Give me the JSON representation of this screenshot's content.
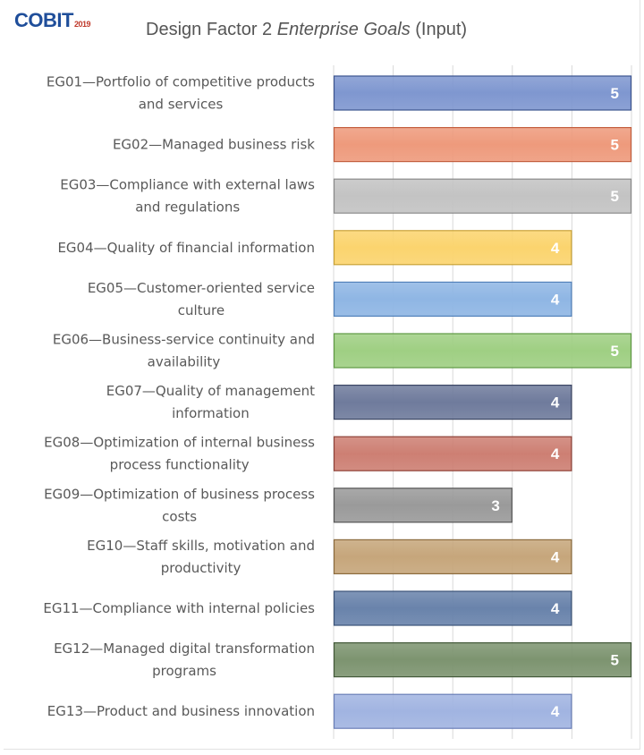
{
  "header": {
    "logo_text": "COBIT",
    "logo_year": "2019",
    "title_prefix": "Design Factor 2 ",
    "title_italic": "Enterprise Goals",
    "title_suffix": " (Input)"
  },
  "chart_data": {
    "type": "bar",
    "orientation": "horizontal",
    "title": "Design Factor 2 Enterprise Goals (Input)",
    "xlabel": "",
    "ylabel": "",
    "xlim": [
      0,
      5
    ],
    "grid": true,
    "legend": "none",
    "categories": [
      [
        "EG01—Portfolio of competitive products",
        "and services"
      ],
      [
        "EG02—Managed business risk"
      ],
      [
        "EG03—Compliance with external laws",
        "and regulations"
      ],
      [
        "EG04—Quality of financial information"
      ],
      [
        "EG05—Customer-oriented service",
        "culture"
      ],
      [
        "EG06—Business-service continuity and",
        "availability"
      ],
      [
        "EG07—Quality of management",
        "information"
      ],
      [
        "EG08—Optimization of internal business",
        "process functionality"
      ],
      [
        "EG09—Optimization of business process",
        "costs"
      ],
      [
        "EG10—Staff skills, motivation and",
        "productivity"
      ],
      [
        "EG11—Compliance with internal policies"
      ],
      [
        "EG12—Managed digital transformation",
        "programs"
      ],
      [
        "EG13—Product and business innovation"
      ]
    ],
    "values": [
      5,
      5,
      5,
      4,
      4,
      5,
      4,
      4,
      3,
      4,
      4,
      5,
      4
    ],
    "bar_colors": [
      "#7f97d0",
      "#ee9a7c",
      "#c3c3c3",
      "#fbd46e",
      "#8fb6e4",
      "#9fcf83",
      "#6f7b9c",
      "#cd7f73",
      "#9a9a9a",
      "#c6a67b",
      "#6983ab",
      "#7d9470",
      "#a1b4e1"
    ],
    "bar_borders": [
      "#3d5590",
      "#c45f3f",
      "#8a8a8a",
      "#c9a236",
      "#5282bb",
      "#5f9a44",
      "#3a4563",
      "#8f4238",
      "#555555",
      "#8c6b3d",
      "#3b5378",
      "#435939",
      "#6a7fb8"
    ],
    "label_colors": [
      "#ffffff",
      "#ffffff",
      "#ffffff",
      "#ffffff",
      "#ffffff",
      "#ffffff",
      "#ffffff",
      "#ffffff",
      "#ffffff",
      "#ffffff",
      "#ffffff",
      "#ffffff",
      "#ffffff"
    ]
  }
}
